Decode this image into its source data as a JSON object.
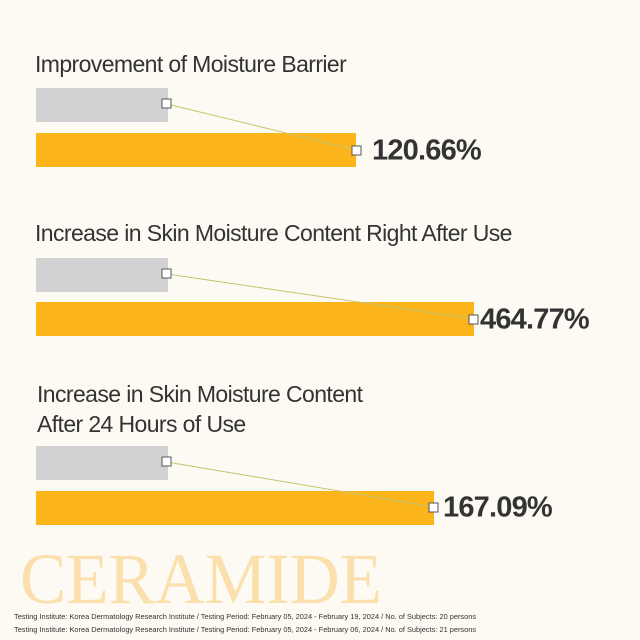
{
  "panels": [
    {
      "title_lines": [
        "Improvement of Moisture Barrier"
      ],
      "result": "120.66%"
    },
    {
      "title_lines": [
        "Increase in Skin Moisture Content Right After Use"
      ],
      "result": "464.77%"
    },
    {
      "title_lines": [
        "Increase in Skin Moisture Content",
        "After 24 Hours of Use"
      ],
      "result": "167.09%"
    }
  ],
  "brand": "CERAMIDE",
  "footnotes": [
    "Testing Institute: Korea Dermatology Research Institute / Testing Period: February 05, 2024 - February 19, 2024 / No. of Subjects: 20 persons",
    "Testing Institute: Korea Dermatology Research Institute / Testing Period: February 05, 2024 - February 06, 2024 / No. of Subjects: 21 persons"
  ]
}
